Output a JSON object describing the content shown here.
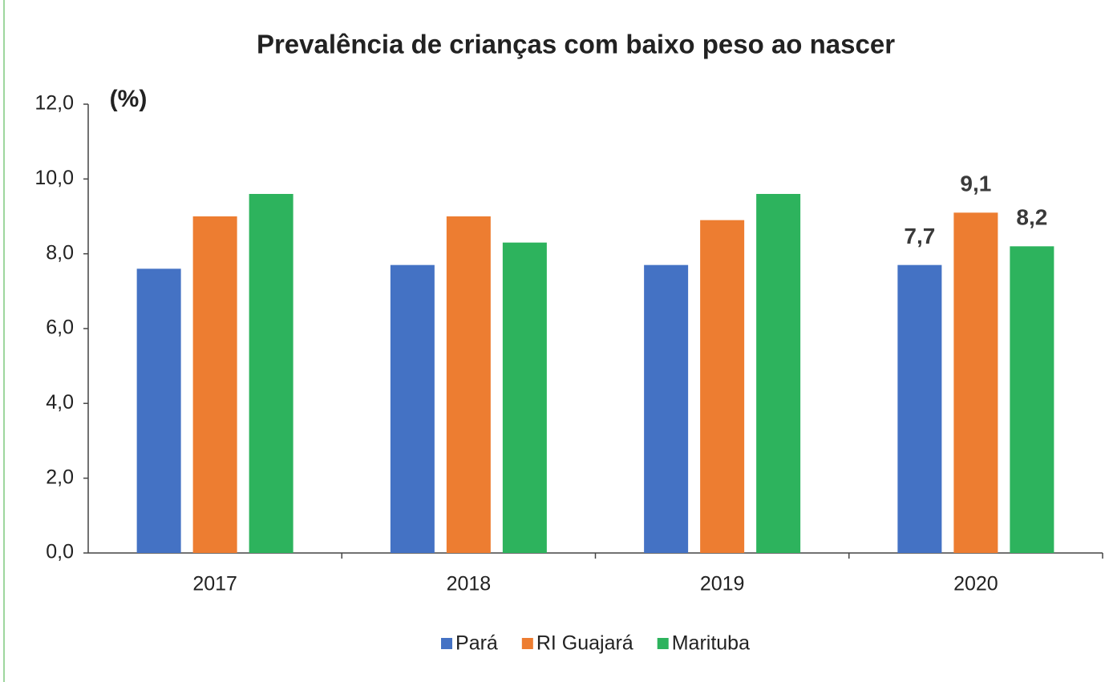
{
  "chart_data": {
    "type": "bar",
    "title": "Prevalência de crianças com baixo peso ao nascer",
    "y_label": "(%)",
    "categories": [
      "2017",
      "2018",
      "2019",
      "2020"
    ],
    "series": [
      {
        "name": "Pará",
        "color": "#4472c4",
        "values": [
          7.6,
          7.7,
          7.7,
          7.7
        ],
        "value_labels": [
          null,
          null,
          null,
          "7,7"
        ]
      },
      {
        "name": "RI Guajará",
        "color": "#ed7d31",
        "values": [
          9.0,
          9.0,
          8.9,
          9.1
        ],
        "value_labels": [
          null,
          null,
          null,
          "9,1"
        ]
      },
      {
        "name": "Marituba",
        "color": "#2db35d",
        "values": [
          9.6,
          8.3,
          9.6,
          8.2
        ],
        "value_labels": [
          null,
          null,
          null,
          "8,2"
        ]
      }
    ],
    "ylim": [
      0,
      12
    ],
    "yticks": [
      {
        "value": 0,
        "label": "0,0"
      },
      {
        "value": 2,
        "label": "2,0"
      },
      {
        "value": 4,
        "label": "4,0"
      },
      {
        "value": 6,
        "label": "6,0"
      },
      {
        "value": 8,
        "label": "8,0"
      },
      {
        "value": 10,
        "label": "10,0"
      },
      {
        "value": 12,
        "label": "12,0"
      }
    ],
    "grid": false,
    "legend": "bottom"
  }
}
